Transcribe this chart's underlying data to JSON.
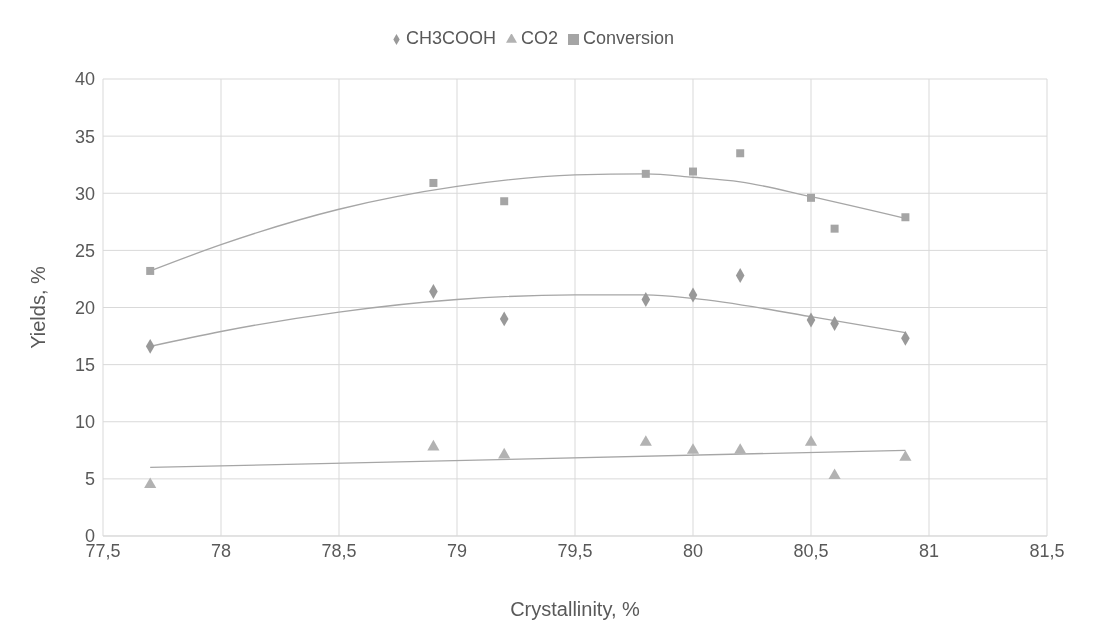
{
  "chart_data": {
    "type": "scatter",
    "xlabel": "Crystallinity, %",
    "ylabel": "Yields, %",
    "xlim": [
      77.5,
      81.5
    ],
    "xticks": [
      {
        "value": 77.5,
        "label": "77,5"
      },
      78,
      {
        "value": 78.5,
        "label": "78,5"
      },
      79,
      {
        "value": 79.5,
        "label": "79,5"
      },
      80,
      {
        "value": 80.5,
        "label": "80,5"
      },
      81,
      {
        "value": 81.5,
        "label": "81,5"
      }
    ],
    "ylim": [
      0,
      40
    ],
    "yticks": [
      0,
      5,
      10,
      15,
      20,
      25,
      30,
      35,
      40
    ],
    "grid": true,
    "legend": "top",
    "series": [
      {
        "name": "CH3COOH",
        "color": "#999999",
        "marker": "diamond",
        "x": [
          77.7,
          78.9,
          79.2,
          79.8,
          80.0,
          80.2,
          80.5,
          80.6,
          80.9
        ],
        "values": [
          16.6,
          21.4,
          19.0,
          20.7,
          21.1,
          22.8,
          18.9,
          18.6,
          17.3
        ]
      },
      {
        "name": "Conversion",
        "color": "#a5a5a5",
        "marker": "square",
        "x": [
          77.7,
          78.9,
          79.2,
          79.8,
          80.0,
          80.2,
          80.5,
          80.6,
          80.9
        ],
        "values": [
          23.2,
          30.9,
          29.3,
          31.7,
          31.9,
          33.5,
          29.6,
          26.9,
          27.9
        ]
      },
      {
        "name": "CO2",
        "color": "#b2b2b2",
        "marker": "triangle",
        "x": [
          77.7,
          78.9,
          79.2,
          79.8,
          80.0,
          80.2,
          80.5,
          80.6,
          80.9
        ],
        "values": [
          4.5,
          7.8,
          7.1,
          8.2,
          7.5,
          7.5,
          8.2,
          5.3,
          6.9
        ]
      },
      {
        "type": "line",
        "color": "#a6a6a6",
        "marker": "none",
        "x": [
          77.7,
          78.0,
          78.5,
          79.0,
          79.5,
          79.8,
          80.0,
          80.5,
          80.9
        ],
        "values": [
          16.6,
          17.9,
          19.6,
          20.7,
          21.1,
          21.1,
          20.8,
          19.2,
          17.8
        ]
      },
      {
        "type": "line",
        "color": "#a6a6a6",
        "marker": "none",
        "x": [
          77.7,
          78.0,
          78.5,
          79.0,
          79.5,
          79.8,
          80.0,
          80.2,
          80.5,
          80.9
        ],
        "values": [
          23.2,
          25.5,
          28.6,
          30.6,
          31.6,
          31.7,
          31.4,
          31.0,
          29.7,
          27.8
        ]
      },
      {
        "type": "line",
        "color": "#a6a6a6",
        "marker": "none",
        "x": [
          77.7,
          80.9
        ],
        "values": [
          6.0,
          7.5
        ]
      }
    ]
  }
}
